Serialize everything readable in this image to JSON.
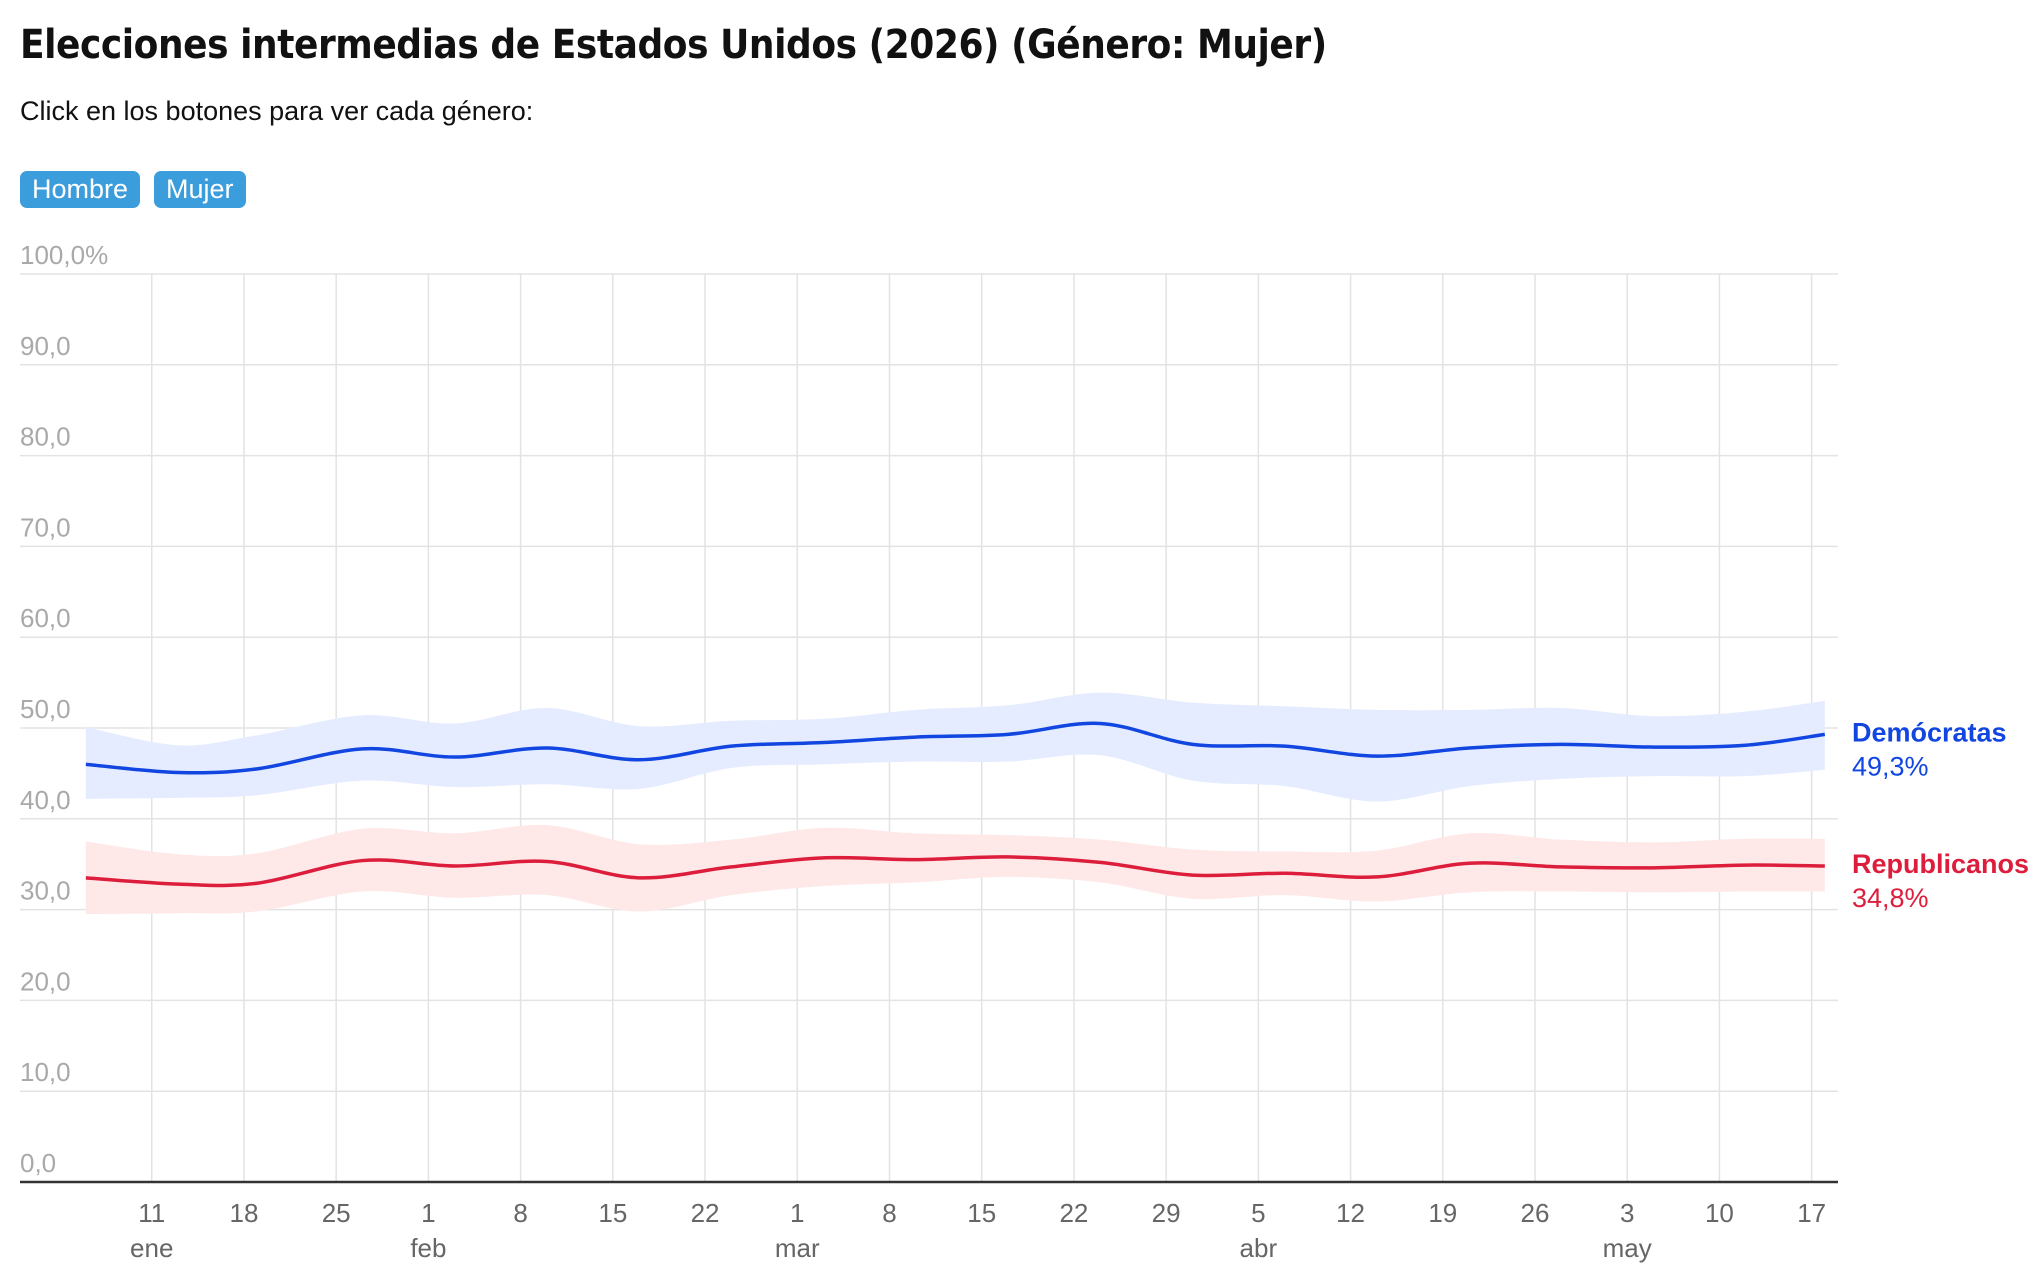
{
  "header": {
    "title": "Elecciones intermedias de Estados Unidos (2026) (Género: Mujer)",
    "subtitle": "Click en los botones para ver cada género:"
  },
  "buttons": [
    {
      "label": "Hombre"
    },
    {
      "label": "Mujer"
    }
  ],
  "colors": {
    "dem_line": "#1146e0",
    "dem_band": "#e6ecff",
    "rep_line": "#dc1e3c",
    "rep_band": "#ffe8e8",
    "grid": "#e3e3e3",
    "axis": "#333333"
  },
  "chart_data": {
    "type": "line",
    "title": "Elecciones intermedias de Estados Unidos (2026) (Género: Mujer)",
    "ylim": [
      0,
      100
    ],
    "y_ticks": [
      "0,0",
      "10,0",
      "20,0",
      "30,0",
      "40,0",
      "50,0",
      "60,0",
      "70,0",
      "80,0",
      "90,0",
      "100,0%"
    ],
    "grid": true,
    "x_ticks": [
      {
        "label": "11",
        "month": "ene",
        "date": "2026-01-11"
      },
      {
        "label": "18",
        "month": "",
        "date": "2026-01-18"
      },
      {
        "label": "25",
        "month": "",
        "date": "2026-01-25"
      },
      {
        "label": "1",
        "month": "feb",
        "date": "2026-02-01"
      },
      {
        "label": "8",
        "month": "",
        "date": "2026-02-08"
      },
      {
        "label": "15",
        "month": "",
        "date": "2026-02-15"
      },
      {
        "label": "22",
        "month": "",
        "date": "2026-02-22"
      },
      {
        "label": "1",
        "month": "mar",
        "date": "2026-03-01"
      },
      {
        "label": "8",
        "month": "",
        "date": "2026-03-08"
      },
      {
        "label": "15",
        "month": "",
        "date": "2026-03-15"
      },
      {
        "label": "22",
        "month": "",
        "date": "2026-03-22"
      },
      {
        "label": "29",
        "month": "",
        "date": "2026-03-29"
      },
      {
        "label": "5",
        "month": "abr",
        "date": "2026-04-05"
      },
      {
        "label": "12",
        "month": "",
        "date": "2026-04-12"
      },
      {
        "label": "19",
        "month": "",
        "date": "2026-04-19"
      },
      {
        "label": "26",
        "month": "",
        "date": "2026-04-26"
      },
      {
        "label": "3",
        "month": "may",
        "date": "2026-05-03"
      },
      {
        "label": "10",
        "month": "",
        "date": "2026-05-10"
      },
      {
        "label": "17",
        "month": "",
        "date": "2026-05-17"
      }
    ],
    "x_range": [
      "2026-01-01",
      "2026-05-19"
    ],
    "series": [
      {
        "name": "Demócratas",
        "last_value_label": "49,3%",
        "points": [
          {
            "x": "2026-01-06",
            "y": 46.0,
            "lo": 42.2,
            "hi": 50.1
          },
          {
            "x": "2026-01-13",
            "y": 45.1,
            "lo": 42.3,
            "hi": 48.1
          },
          {
            "x": "2026-01-19",
            "y": 45.5,
            "lo": 42.6,
            "hi": 49.2
          },
          {
            "x": "2026-01-27",
            "y": 47.7,
            "lo": 44.2,
            "hi": 51.4
          },
          {
            "x": "2026-02-03",
            "y": 46.8,
            "lo": 43.5,
            "hi": 50.5
          },
          {
            "x": "2026-02-10",
            "y": 47.8,
            "lo": 43.8,
            "hi": 52.2
          },
          {
            "x": "2026-02-17",
            "y": 46.5,
            "lo": 43.3,
            "hi": 50.2
          },
          {
            "x": "2026-02-24",
            "y": 48.0,
            "lo": 45.6,
            "hi": 50.8
          },
          {
            "x": "2026-03-03",
            "y": 48.4,
            "lo": 46.0,
            "hi": 51.0
          },
          {
            "x": "2026-03-10",
            "y": 49.0,
            "lo": 46.3,
            "hi": 52.0
          },
          {
            "x": "2026-03-17",
            "y": 49.3,
            "lo": 46.3,
            "hi": 52.5
          },
          {
            "x": "2026-03-24",
            "y": 50.5,
            "lo": 47.0,
            "hi": 53.9
          },
          {
            "x": "2026-03-31",
            "y": 48.2,
            "lo": 44.2,
            "hi": 52.8
          },
          {
            "x": "2026-04-07",
            "y": 48.0,
            "lo": 43.6,
            "hi": 52.4
          },
          {
            "x": "2026-04-14",
            "y": 46.9,
            "lo": 41.9,
            "hi": 52.0
          },
          {
            "x": "2026-04-21",
            "y": 47.8,
            "lo": 43.6,
            "hi": 52.0
          },
          {
            "x": "2026-04-28",
            "y": 48.2,
            "lo": 44.4,
            "hi": 52.2
          },
          {
            "x": "2026-05-05",
            "y": 47.9,
            "lo": 44.7,
            "hi": 51.3
          },
          {
            "x": "2026-05-12",
            "y": 48.1,
            "lo": 44.7,
            "hi": 51.8
          },
          {
            "x": "2026-05-18",
            "y": 49.3,
            "lo": 45.4,
            "hi": 53.0
          }
        ]
      },
      {
        "name": "Republicanos",
        "last_value_label": "34,8%",
        "points": [
          {
            "x": "2026-01-06",
            "y": 33.5,
            "lo": 29.5,
            "hi": 37.5
          },
          {
            "x": "2026-01-13",
            "y": 32.8,
            "lo": 29.6,
            "hi": 36.1
          },
          {
            "x": "2026-01-19",
            "y": 32.9,
            "lo": 29.8,
            "hi": 36.2
          },
          {
            "x": "2026-01-27",
            "y": 35.4,
            "lo": 32.0,
            "hi": 38.9
          },
          {
            "x": "2026-02-03",
            "y": 34.8,
            "lo": 31.3,
            "hi": 38.4
          },
          {
            "x": "2026-02-10",
            "y": 35.3,
            "lo": 31.6,
            "hi": 39.3
          },
          {
            "x": "2026-02-17",
            "y": 33.5,
            "lo": 29.8,
            "hi": 37.2
          },
          {
            "x": "2026-02-24",
            "y": 34.7,
            "lo": 31.6,
            "hi": 37.7
          },
          {
            "x": "2026-03-03",
            "y": 35.7,
            "lo": 32.6,
            "hi": 39.0
          },
          {
            "x": "2026-03-10",
            "y": 35.5,
            "lo": 33.0,
            "hi": 38.4
          },
          {
            "x": "2026-03-17",
            "y": 35.8,
            "lo": 33.6,
            "hi": 38.2
          },
          {
            "x": "2026-03-24",
            "y": 35.2,
            "lo": 33.0,
            "hi": 37.7
          },
          {
            "x": "2026-03-31",
            "y": 33.8,
            "lo": 31.2,
            "hi": 36.6
          },
          {
            "x": "2026-04-07",
            "y": 34.0,
            "lo": 31.6,
            "hi": 36.4
          },
          {
            "x": "2026-04-14",
            "y": 33.6,
            "lo": 30.9,
            "hi": 36.5
          },
          {
            "x": "2026-04-21",
            "y": 35.1,
            "lo": 31.9,
            "hi": 38.4
          },
          {
            "x": "2026-04-28",
            "y": 34.7,
            "lo": 32.0,
            "hi": 37.7
          },
          {
            "x": "2026-05-05",
            "y": 34.6,
            "lo": 31.9,
            "hi": 37.4
          },
          {
            "x": "2026-05-12",
            "y": 34.9,
            "lo": 32.0,
            "hi": 37.8
          },
          {
            "x": "2026-05-18",
            "y": 34.8,
            "lo": 32.0,
            "hi": 37.8
          }
        ]
      }
    ]
  }
}
